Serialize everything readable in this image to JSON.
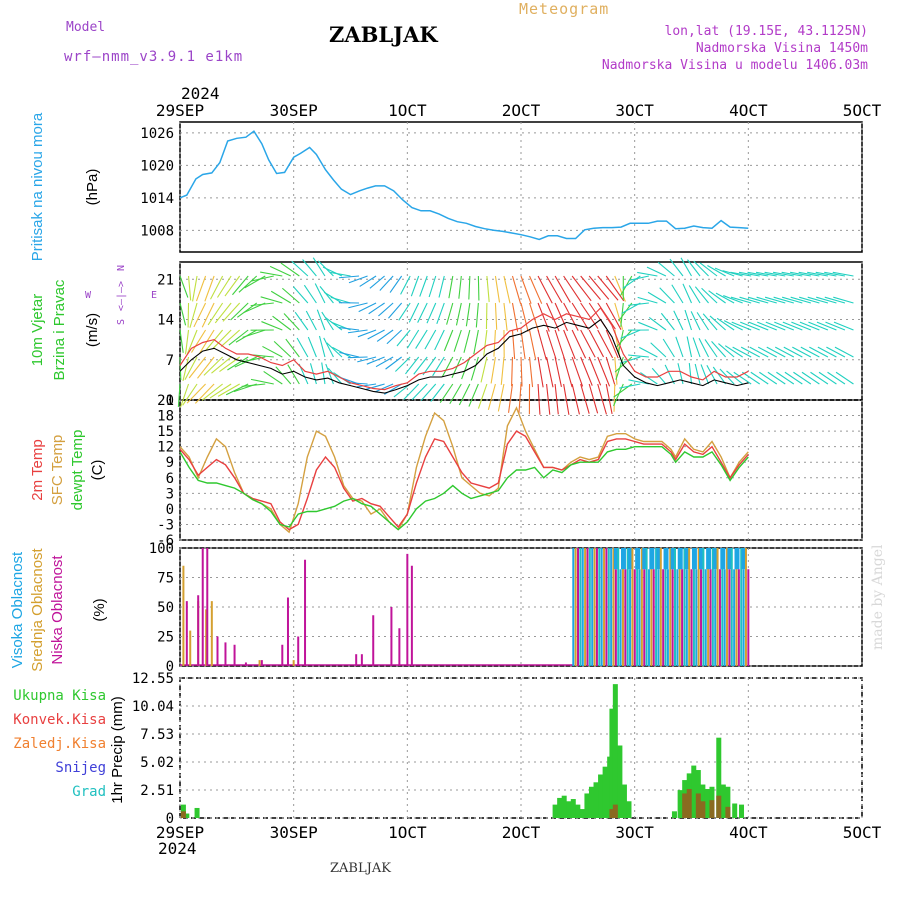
{
  "header": {
    "title": "ZABLJAK",
    "model_label": "Model",
    "model_value": "wrf—nmm_v3.9.1  e1km",
    "meteogram_label": "Meteogram",
    "location": "lon,lat (19.15E, 43.1125N)",
    "altitude": "Nadmorska Visina 1450m",
    "model_altitude": "Nadmorska Visina u modelu 1406.03m",
    "footer": "ZABLJAK",
    "watermark": "made by Angel"
  },
  "colors": {
    "pressure": "#2aa6e8",
    "temp2m": "#e84040",
    "sfc": "#d4a040",
    "dewpt": "#2fc82f",
    "high_cloud": "#1ea6e4",
    "mid_cloud": "#d4a030",
    "low_cloud": "#c0149a",
    "total_precip": "#2fc82f",
    "conv_precip": "#e84040",
    "frozen": "#f08030",
    "snow": "#4040d8",
    "hail": "#20c0c0",
    "grid": "#999999"
  },
  "chart_data": [
    {
      "type": "line",
      "name": "pressure",
      "label_lines": [
        "Pritisak na nivou mora",
        "(hPa)"
      ],
      "x_ticks_top": [
        "29SEP",
        "30SEP",
        "1OCT",
        "2OCT",
        "3OCT",
        "4OCT",
        "5OCT"
      ],
      "x_year": "2024",
      "ylim": [
        1004,
        1028
      ],
      "yticks": [
        1026,
        1020,
        1014,
        1008
      ],
      "x": [
        0,
        0.06,
        0.14,
        0.2,
        0.28,
        0.35,
        0.42,
        0.5,
        0.58,
        0.65,
        0.72,
        0.78,
        0.85,
        0.92,
        1.0,
        1.06,
        1.14,
        1.2,
        1.28,
        1.35,
        1.42,
        1.5,
        1.58,
        1.65,
        1.72,
        1.8,
        1.88,
        1.96,
        2.04,
        2.12,
        2.2,
        2.28,
        2.36,
        2.44,
        2.52,
        2.6,
        2.68,
        2.76,
        2.84,
        2.92,
        3.0,
        3.08,
        3.16,
        3.24,
        3.32,
        3.4,
        3.48,
        3.56,
        3.64,
        3.72,
        3.8,
        3.88,
        3.96,
        4.04,
        4.12,
        4.2,
        4.28,
        4.36,
        4.44,
        4.52,
        4.6,
        4.68,
        4.76,
        4.84,
        4.92,
        5.0
      ],
      "values": [
        1014,
        1014.5,
        1017.5,
        1018.3,
        1018.6,
        1020.5,
        1024.5,
        1025,
        1025.2,
        1026.3,
        1024,
        1021,
        1018.5,
        1018.7,
        1021.5,
        1022.2,
        1023.3,
        1022,
        1019.2,
        1017.3,
        1015.6,
        1014.6,
        1015.3,
        1015.8,
        1016.2,
        1016.2,
        1015.3,
        1013.6,
        1012.2,
        1011.6,
        1011.6,
        1011,
        1010.2,
        1009.6,
        1009.3,
        1008.7,
        1008.3,
        1008,
        1007.8,
        1007.5,
        1007.2,
        1006.8,
        1006.3,
        1007,
        1007,
        1006.5,
        1006.5,
        1008.1,
        1008.4,
        1008.5,
        1008.5,
        1008.6,
        1009.3,
        1009.3,
        1009.3,
        1009.7,
        1009.7,
        1008.3,
        1008.4,
        1008.8,
        1008.5,
        1008.4,
        1009.8,
        1008.6,
        1008.5,
        1008.4
      ]
    },
    {
      "type": "line",
      "name": "wind",
      "label_lines": [
        "10m Vjetar",
        "Brzina i Pravac",
        "(m/s)"
      ],
      "direction_legend": {
        "north": "N",
        "west": "W",
        "east": "E",
        "south": "S"
      },
      "ylim": [
        0,
        24
      ],
      "yticks": [
        21,
        14,
        7,
        0
      ],
      "x": [
        0,
        0.1,
        0.2,
        0.3,
        0.4,
        0.5,
        0.6,
        0.7,
        0.8,
        0.9,
        1.0,
        1.1,
        1.2,
        1.3,
        1.4,
        1.5,
        1.6,
        1.7,
        1.8,
        1.9,
        2.0,
        2.1,
        2.2,
        2.3,
        2.4,
        2.5,
        2.6,
        2.7,
        2.8,
        2.9,
        3.0,
        3.1,
        3.2,
        3.3,
        3.4,
        3.5,
        3.6,
        3.7,
        3.8,
        3.9,
        4.0,
        4.1,
        4.2,
        4.3,
        4.4,
        4.5,
        4.6,
        4.7,
        4.8,
        4.9,
        5.0
      ],
      "speed": [
        5,
        7,
        8.5,
        9,
        8,
        7,
        6.5,
        6,
        5.5,
        4.5,
        5,
        4,
        3.5,
        3.8,
        3,
        2.5,
        2,
        1.5,
        1.2,
        1.8,
        2.5,
        3.5,
        4,
        4,
        4.5,
        5,
        6,
        8,
        9,
        11,
        11.5,
        12.5,
        13,
        12.5,
        13.5,
        13,
        12.5,
        14,
        11,
        6,
        4,
        3,
        2.5,
        3,
        3.5,
        3,
        2.5,
        3.5,
        3,
        2.5,
        3
      ],
      "gust": [
        6,
        9,
        10,
        10.5,
        9,
        8,
        8,
        7.5,
        6.5,
        6,
        7,
        5,
        4.5,
        5,
        4,
        3,
        2.5,
        2,
        1.8,
        2.5,
        3,
        4.5,
        5,
        5,
        5.5,
        6.5,
        8,
        9.5,
        10,
        12,
        12.5,
        14,
        15,
        14,
        15,
        14.5,
        14,
        16,
        13,
        8,
        5,
        4,
        4,
        5,
        5,
        4,
        3.5,
        5,
        4,
        4,
        5
      ],
      "direction_deg": [
        160,
        180,
        200,
        200,
        210,
        215,
        220,
        230,
        250,
        280,
        300,
        310,
        320,
        330,
        300,
        280,
        260,
        240,
        230,
        220,
        210,
        200,
        200,
        195,
        190,
        185,
        180,
        175,
        170,
        165,
        160,
        155,
        150,
        150,
        145,
        140,
        140,
        140,
        150,
        180,
        220,
        250,
        280,
        300,
        320,
        330,
        320,
        310,
        300,
        290,
        280
      ]
    },
    {
      "type": "line",
      "name": "temperature",
      "label_lines": [
        "2m Temp",
        "SFC Temp",
        "dewpt Temp",
        "(C)"
      ],
      "series_names": [
        "2m Temp",
        "SFC Temp",
        "dewpt Temp"
      ],
      "ylim": [
        -6,
        21
      ],
      "yticks": [
        21,
        18,
        15,
        12,
        9,
        6,
        3,
        0,
        -3,
        -6
      ],
      "x": [
        0,
        0.08,
        0.16,
        0.24,
        0.32,
        0.4,
        0.48,
        0.56,
        0.64,
        0.72,
        0.8,
        0.88,
        0.96,
        1.04,
        1.12,
        1.2,
        1.28,
        1.36,
        1.44,
        1.52,
        1.6,
        1.68,
        1.76,
        1.84,
        1.92,
        2.0,
        2.08,
        2.16,
        2.24,
        2.32,
        2.4,
        2.48,
        2.56,
        2.64,
        2.72,
        2.8,
        2.88,
        2.96,
        3.04,
        3.12,
        3.2,
        3.28,
        3.36,
        3.44,
        3.52,
        3.6,
        3.68,
        3.76,
        3.84,
        3.92,
        4.0,
        4.08,
        4.16,
        4.24,
        4.32,
        4.36,
        4.44,
        4.52,
        4.6,
        4.68,
        4.76,
        4.84,
        4.92,
        5.0
      ],
      "series": [
        {
          "name": "2m Temp",
          "values": [
            11.5,
            9.5,
            6.5,
            8,
            9.5,
            8.5,
            6,
            3,
            2,
            1.5,
            1,
            -2.5,
            -4,
            -3,
            2,
            7.5,
            10,
            8,
            4,
            1.5,
            2,
            1,
            0.5,
            -1.5,
            -3.5,
            -1,
            5,
            10,
            13.5,
            13,
            10,
            7,
            5,
            4.5,
            4,
            5,
            12.5,
            15,
            14,
            11,
            8,
            8,
            7.5,
            8.5,
            9.5,
            9,
            9.5,
            13,
            13.5,
            13.5,
            13,
            12.5,
            12.5,
            12.5,
            11,
            9.5,
            12.5,
            11,
            10.5,
            12,
            9,
            6,
            8.5,
            10.5
          ]
        },
        {
          "name": "SFC Temp",
          "values": [
            12,
            10,
            6,
            10,
            13.5,
            12,
            7,
            3,
            1.8,
            1,
            0,
            -3,
            -4.5,
            1,
            10,
            15,
            14,
            10,
            4.5,
            2,
            1.5,
            -1,
            0,
            -2.5,
            -4,
            -1,
            8,
            14,
            18.5,
            17,
            12,
            6,
            4.5,
            3,
            2.5,
            4,
            16,
            19.5,
            15,
            11.5,
            8,
            8,
            7.5,
            9,
            10,
            9.5,
            10,
            14,
            14.5,
            14.5,
            13.5,
            13,
            13,
            13,
            11.5,
            10,
            13.5,
            11.5,
            11,
            13,
            10,
            6,
            9,
            11
          ]
        },
        {
          "name": "dewpt Temp",
          "values": [
            11,
            8,
            5.5,
            5,
            5,
            4.5,
            4,
            3,
            1.8,
            1,
            -0.5,
            -3,
            -3.5,
            -1,
            -0.5,
            -0.5,
            0,
            0.5,
            1.5,
            2,
            1,
            0.5,
            -1,
            -2.5,
            -4,
            -2.5,
            0,
            1.5,
            2,
            3,
            4.5,
            3,
            2,
            2.5,
            3,
            3.5,
            6,
            7.5,
            7.5,
            8,
            6,
            7.5,
            7,
            8.5,
            9,
            9,
            9,
            11,
            11.5,
            11.5,
            12,
            12,
            12,
            12,
            10.5,
            9,
            11,
            10,
            10,
            11,
            8.5,
            5.5,
            8,
            10
          ]
        }
      ]
    },
    {
      "type": "bar",
      "name": "cloud_cover",
      "label_lines": [
        "Visoka Oblacnost",
        "Srednja Oblacnost",
        "Niska Oblacnost",
        "(%)"
      ],
      "series_names": [
        "Visoka Oblacnost",
        "Srednja Oblacnost",
        "Niska Oblacnost"
      ],
      "ylim": [
        0,
        100
      ],
      "yticks": [
        100,
        75,
        50,
        25,
        0
      ],
      "low": [
        [
          0.06,
          55
        ],
        [
          0.16,
          60
        ],
        [
          0.2,
          100
        ],
        [
          0.24,
          100
        ],
        [
          0.33,
          25
        ],
        [
          0.4,
          20
        ],
        [
          0.48,
          18
        ],
        [
          0.58,
          3
        ],
        [
          0.72,
          5
        ],
        [
          0.9,
          18
        ],
        [
          0.95,
          58
        ],
        [
          1.04,
          25
        ],
        [
          1.1,
          90
        ],
        [
          1.55,
          10
        ],
        [
          1.6,
          10
        ],
        [
          1.7,
          43
        ],
        [
          1.86,
          50
        ],
        [
          1.93,
          32
        ],
        [
          2.0,
          95
        ],
        [
          2.04,
          85
        ]
      ],
      "mid": [
        [
          0.03,
          85
        ],
        [
          0.09,
          30
        ],
        [
          0.16,
          55
        ],
        [
          0.23,
          48
        ],
        [
          0.28,
          55
        ],
        [
          0.7,
          5
        ],
        [
          1.0,
          5
        ]
      ],
      "overcast_from": 3.46,
      "overcast_to": 5.0
    },
    {
      "type": "bar",
      "name": "precipitation",
      "label_lines": [
        "1hr Precip (mm)"
      ],
      "legend": [
        "Ukupna Kisa",
        "Konvek.Kisa",
        "Zaledj.Kisa",
        "Snijeg",
        "Grad"
      ],
      "ylim": [
        0,
        12.55
      ],
      "yticks": [
        "12.55",
        "10.04",
        "7.53",
        "5.02",
        "2.51",
        "0"
      ],
      "x_ticks_bottom": [
        "29SEP",
        "30SEP",
        "1OCT",
        "2OCT",
        "3OCT",
        "4OCT",
        "5OCT"
      ],
      "x_year": "2024",
      "total": [
        [
          0.03,
          1.2
        ],
        [
          0.06,
          0.4
        ],
        [
          0.15,
          0.9
        ],
        [
          3.3,
          1.2
        ],
        [
          3.34,
          1.8
        ],
        [
          3.38,
          2
        ],
        [
          3.42,
          1.5
        ],
        [
          3.46,
          1.7
        ],
        [
          3.5,
          1.2
        ],
        [
          3.54,
          0.8
        ],
        [
          3.58,
          2.2
        ],
        [
          3.62,
          2.8
        ],
        [
          3.66,
          3.2
        ],
        [
          3.7,
          3.9
        ],
        [
          3.74,
          4.6
        ],
        [
          3.78,
          5.5
        ],
        [
          3.8,
          9.8
        ],
        [
          3.83,
          12
        ],
        [
          3.87,
          6.5
        ],
        [
          3.91,
          3
        ],
        [
          3.95,
          1.5
        ],
        [
          4.35,
          0.6
        ],
        [
          4.4,
          2.5
        ],
        [
          4.44,
          3.4
        ],
        [
          4.48,
          4
        ],
        [
          4.52,
          4.7
        ],
        [
          4.56,
          4.3
        ],
        [
          4.6,
          3
        ],
        [
          4.64,
          2.6
        ],
        [
          4.68,
          2.8
        ],
        [
          4.74,
          7.2
        ],
        [
          4.78,
          3
        ],
        [
          4.82,
          2.8
        ],
        [
          4.88,
          1.3
        ],
        [
          4.94,
          1.2
        ]
      ],
      "convective": [
        [
          0.03,
          0.6
        ],
        [
          3.8,
          0.8
        ],
        [
          3.83,
          1.2
        ],
        [
          4.44,
          2.2
        ],
        [
          4.48,
          2.6
        ],
        [
          4.56,
          2.2
        ],
        [
          4.6,
          1.5
        ],
        [
          4.68,
          1.6
        ],
        [
          4.74,
          2
        ],
        [
          4.82,
          1
        ]
      ]
    }
  ]
}
